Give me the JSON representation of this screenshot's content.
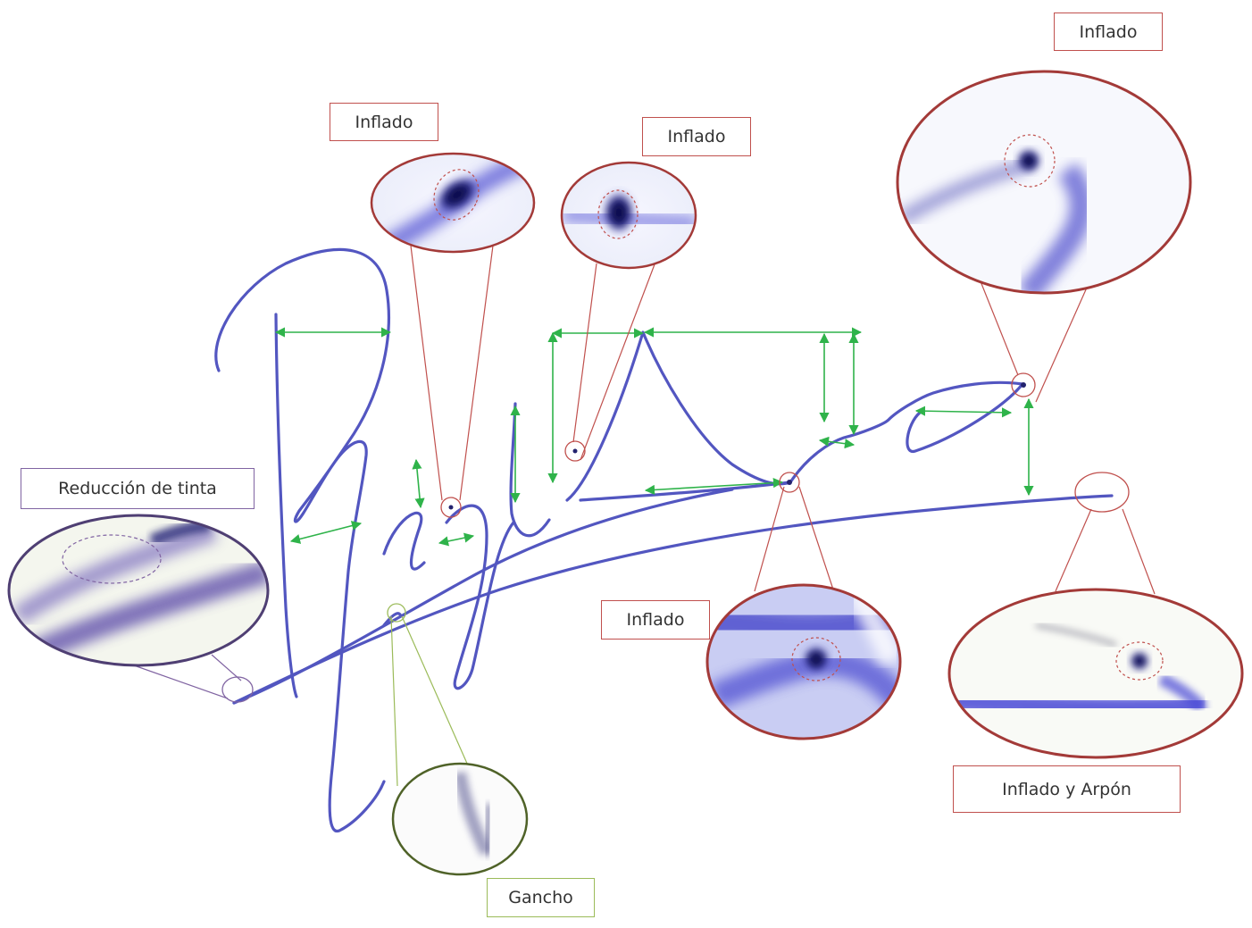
{
  "labels": {
    "inflado_1": "Inflado",
    "inflado_2": "Inflado",
    "inflado_3": "Inflado",
    "inflado_4": "Inflado",
    "inflado_arpon": "Inflado y Arpón",
    "reduccion_tinta": "Reducción de tinta",
    "gancho": "Gancho"
  },
  "colors": {
    "ink": "#3b3fb8",
    "ink_dark": "#0d0d4a",
    "callout_red": "#c0504d",
    "callout_purple": "#8064a2",
    "callout_green": "#9bbb59",
    "measure_green": "#2fb34a"
  }
}
